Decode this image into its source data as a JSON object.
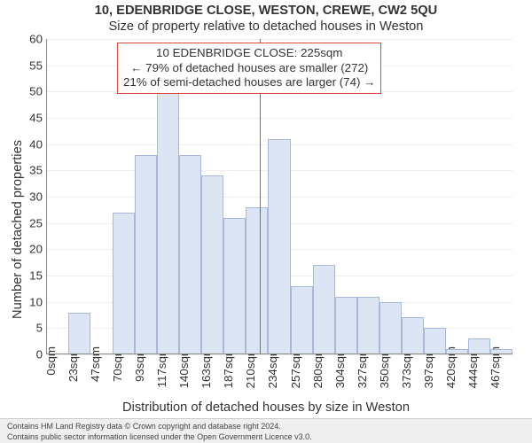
{
  "titles": {
    "line1": "10, EDENBRIDGE CLOSE, WESTON, CREWE, CW2 5QU",
    "line2": "Size of property relative to detached houses in Weston",
    "fontsize_pt": 11
  },
  "axes": {
    "ylabel": "Number of detached properties",
    "xlabel": "Distribution of detached houses by size in Weston",
    "label_fontsize_pt": 11,
    "tick_fontsize_pt": 10
  },
  "chart": {
    "type": "histogram",
    "ylim": [
      0,
      60
    ],
    "ytick_step": 5,
    "bin_width_sqm": 23.4,
    "xtick_labels": [
      "0sqm",
      "23sqm",
      "47sqm",
      "70sqm",
      "93sqm",
      "117sqm",
      "140sqm",
      "163sqm",
      "187sqm",
      "210sqm",
      "234sqm",
      "257sqm",
      "280sqm",
      "304sqm",
      "327sqm",
      "350sqm",
      "373sqm",
      "397sqm",
      "420sqm",
      "444sqm",
      "467sqm"
    ],
    "values": [
      0,
      8,
      0,
      27,
      38,
      50,
      38,
      34,
      26,
      28,
      41,
      13,
      17,
      11,
      11,
      10,
      7,
      5,
      1,
      3,
      1
    ],
    "bar_fill": "#dbe5f4",
    "bar_stroke": "#a8b8d8",
    "grid_color": "#eeeeee",
    "axis_color": "#888888",
    "background": "#ffffff"
  },
  "marker": {
    "sqm": 225,
    "color": "#d94a3a",
    "annotation": {
      "title": "10 EDENBRIDGE CLOSE: 225sqm",
      "line2": "← 79% of detached houses are smaller (272)",
      "line3": "21% of semi-detached houses are larger (74) →",
      "border_color": "#d94a3a",
      "fontsize_pt": 10
    }
  },
  "footer": {
    "line1": "Contains HM Land Registry data © Crown copyright and database right 2024.",
    "line2": "Contains public sector information licensed under the Open Government Licence v3.0.",
    "background": "#efefef",
    "fontsize_pt": 7
  }
}
